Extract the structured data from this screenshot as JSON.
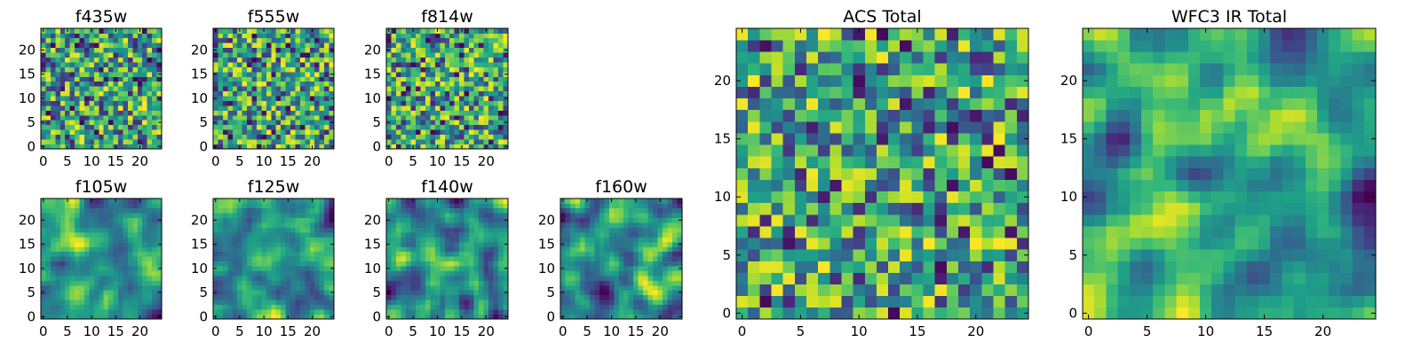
{
  "chart_data": [
    {
      "type": "heatmap",
      "title": "f435w",
      "xlim": [
        -0.5,
        24.5
      ],
      "ylim": [
        -0.5,
        24.5
      ],
      "xticks": [
        "0",
        "5",
        "10",
        "15",
        "20"
      ],
      "yticks": [
        "0",
        "5",
        "10",
        "15",
        "20"
      ],
      "grid_size": 25,
      "value_range": [
        0,
        1
      ],
      "colormap": "viridis",
      "pattern": "noise",
      "seed": 11
    },
    {
      "type": "heatmap",
      "title": "f555w",
      "xlim": [
        -0.5,
        24.5
      ],
      "ylim": [
        -0.5,
        24.5
      ],
      "xticks": [
        "0",
        "5",
        "10",
        "15",
        "20"
      ],
      "yticks": [
        "0",
        "5",
        "10",
        "15",
        "20"
      ],
      "grid_size": 25,
      "value_range": [
        0,
        1
      ],
      "colormap": "viridis",
      "pattern": "noise",
      "seed": 23
    },
    {
      "type": "heatmap",
      "title": "f814w",
      "xlim": [
        -0.5,
        24.5
      ],
      "ylim": [
        -0.5,
        24.5
      ],
      "xticks": [
        "0",
        "5",
        "10",
        "15",
        "20"
      ],
      "yticks": [
        "0",
        "5",
        "10",
        "15",
        "20"
      ],
      "grid_size": 25,
      "value_range": [
        0,
        1
      ],
      "colormap": "viridis",
      "pattern": "noise",
      "seed": 37
    },
    {
      "type": "heatmap",
      "title": "f105w",
      "xlim": [
        -0.5,
        24.5
      ],
      "ylim": [
        -0.5,
        24.5
      ],
      "xticks": [
        "0",
        "5",
        "10",
        "15",
        "20"
      ],
      "yticks": [
        "0",
        "5",
        "10",
        "15",
        "20"
      ],
      "grid_size": 25,
      "value_range": [
        0,
        1
      ],
      "colormap": "viridis",
      "pattern": "smooth",
      "seed": 41
    },
    {
      "type": "heatmap",
      "title": "f125w",
      "xlim": [
        -0.5,
        24.5
      ],
      "ylim": [
        -0.5,
        24.5
      ],
      "xticks": [
        "0",
        "5",
        "10",
        "15",
        "20"
      ],
      "yticks": [
        "0",
        "5",
        "10",
        "15",
        "20"
      ],
      "grid_size": 25,
      "value_range": [
        0,
        1
      ],
      "colormap": "viridis",
      "pattern": "smooth",
      "seed": 53
    },
    {
      "type": "heatmap",
      "title": "f140w",
      "xlim": [
        -0.5,
        24.5
      ],
      "ylim": [
        -0.5,
        24.5
      ],
      "xticks": [
        "0",
        "5",
        "10",
        "15",
        "20"
      ],
      "yticks": [
        "0",
        "5",
        "10",
        "15",
        "20"
      ],
      "grid_size": 25,
      "value_range": [
        0,
        1
      ],
      "colormap": "viridis",
      "pattern": "smooth",
      "seed": 67
    },
    {
      "type": "heatmap",
      "title": "f160w",
      "xlim": [
        -0.5,
        24.5
      ],
      "ylim": [
        -0.5,
        24.5
      ],
      "xticks": [
        "0",
        "5",
        "10",
        "15",
        "20"
      ],
      "yticks": [
        "0",
        "5",
        "10",
        "15",
        "20"
      ],
      "grid_size": 25,
      "value_range": [
        0,
        1
      ],
      "colormap": "viridis",
      "pattern": "smooth",
      "seed": 79
    },
    {
      "type": "heatmap",
      "title": "ACS Total",
      "xlim": [
        -0.5,
        24.5
      ],
      "ylim": [
        -0.5,
        24.5
      ],
      "xticks": [
        "0",
        "5",
        "10",
        "15",
        "20"
      ],
      "yticks": [
        "0",
        "5",
        "10",
        "15",
        "20"
      ],
      "grid_size": 25,
      "value_range": [
        0,
        1
      ],
      "colormap": "viridis",
      "pattern": "noise",
      "seed": 97
    },
    {
      "type": "heatmap",
      "title": "WFC3 IR Total",
      "xlim": [
        -0.5,
        24.5
      ],
      "ylim": [
        -0.5,
        24.5
      ],
      "xticks": [
        "0",
        "5",
        "10",
        "15",
        "20"
      ],
      "yticks": [
        "0",
        "5",
        "10",
        "15",
        "20"
      ],
      "grid_size": 25,
      "value_range": [
        0,
        1
      ],
      "colormap": "viridis",
      "pattern": "smooth",
      "seed": 113
    }
  ]
}
